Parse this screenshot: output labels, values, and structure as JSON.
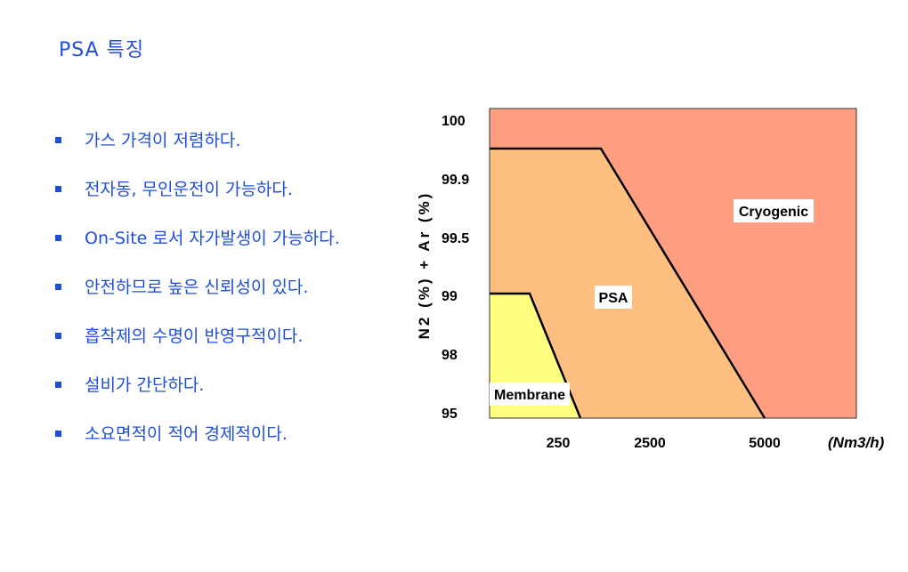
{
  "title": "PSA  특징",
  "bullets": [
    "가스 가격이 저렴하다.",
    "전자동, 무인운전이 가능하다.",
    "On-Site  로서 자가발생이 가능하다.",
    "안전하므로 높은 신뢰성이 있다.",
    "흡착제의 수명이 반영구적이다.",
    "설비가 간단하다.",
    "소요면적이 적어 경제적이다."
  ],
  "colors": {
    "text_blue": "#1f4fd6",
    "cryogenic": "#ff9e80",
    "psa": "#ffbf80",
    "membrane": "#ffff80"
  },
  "chart_data": {
    "type": "area",
    "ylabel": "N2 (%) + Ar (%)",
    "xlabel_unit": "(Nm3/h)",
    "y_ticks": [
      "100",
      "99.9",
      "99.5",
      "99",
      "98",
      "95"
    ],
    "x_ticks": [
      "250",
      "2500",
      "5000"
    ],
    "regions": [
      {
        "name": "Cryogenic"
      },
      {
        "name": "PSA"
      },
      {
        "name": "Membrane"
      }
    ]
  }
}
